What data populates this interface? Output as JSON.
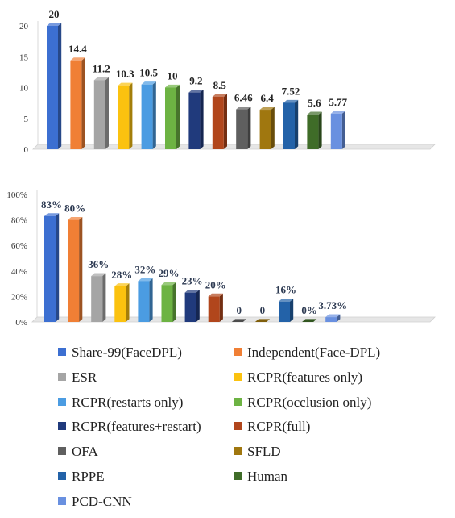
{
  "chart_data": [
    {
      "type": "bar",
      "categories": [
        "Share-99(FaceDPL)",
        "Independent(Face-DPL)",
        "ESR",
        "RCPR(features only)",
        "RCPR(restarts only)",
        "RCPR(occlusion only)",
        "RCPR(features+restart)",
        "RCPR(full)",
        "OFA",
        "SFLD",
        "RPPE",
        "Human",
        "PCD-CNN"
      ],
      "values": [
        20,
        14.4,
        11.2,
        10.3,
        10.5,
        10,
        9.2,
        8.5,
        6.46,
        6.4,
        7.52,
        5.6,
        5.77
      ],
      "data_labels": [
        "20",
        "14.4",
        "11.2",
        "10.3",
        "10.5",
        "10",
        "9.2",
        "8.5",
        "6.46",
        "6.4",
        "7.52",
        "5.6",
        "5.77"
      ],
      "yticks": [
        "0",
        "5",
        "10",
        "15",
        "20"
      ],
      "ylim": [
        0,
        20
      ],
      "grid": false,
      "title": "",
      "xlabel": "",
      "ylabel": ""
    },
    {
      "type": "bar",
      "categories": [
        "Share-99(FaceDPL)",
        "Independent(Face-DPL)",
        "ESR",
        "RCPR(features only)",
        "RCPR(restarts only)",
        "RCPR(occlusion only)",
        "RCPR(features+restart)",
        "RCPR(full)",
        "OFA",
        "SFLD",
        "RPPE",
        "Human",
        "PCD-CNN"
      ],
      "values": [
        83,
        80,
        36,
        28,
        32,
        29,
        23,
        20,
        0,
        0,
        16,
        0,
        3.73
      ],
      "data_labels": [
        "83%",
        "80%",
        "36%",
        "28%",
        "32%",
        "29%",
        "23%",
        "20%",
        "0",
        "0",
        "16%",
        "0%",
        "3.73%"
      ],
      "yticks": [
        "0%",
        "20%",
        "40%",
        "60%",
        "80%",
        "100%"
      ],
      "ylim": [
        0,
        100
      ],
      "grid": false,
      "title": "",
      "xlabel": "",
      "ylabel": ""
    }
  ],
  "legend": {
    "placement": "bottom",
    "items": [
      {
        "label": "Share-99(FaceDPL)",
        "color": "#3c6fd1"
      },
      {
        "label": "Independent(Face-DPL)",
        "color": "#f07f35"
      },
      {
        "label": "ESR",
        "color": "#a5a5a5"
      },
      {
        "label": "RCPR(features only)",
        "color": "#fbc20f"
      },
      {
        "label": "RCPR(restarts only)",
        "color": "#4b9ce2"
      },
      {
        "label": "RCPR(occlusion only)",
        "color": "#6db343"
      },
      {
        "label": "RCPR(features+restart)",
        "color": "#203a7c"
      },
      {
        "label": "RCPR(full)",
        "color": "#b1461c"
      },
      {
        "label": "OFA",
        "color": "#5f5f5f"
      },
      {
        "label": "SFLD",
        "color": "#a0770f"
      },
      {
        "label": "RPPE",
        "color": "#2362a8"
      },
      {
        "label": "Human",
        "color": "#3f6c28"
      },
      {
        "label": "PCD-CNN",
        "color": "#6990e0"
      }
    ]
  }
}
